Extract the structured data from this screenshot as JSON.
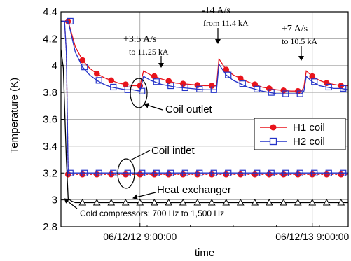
{
  "chart_data": {
    "type": "line",
    "xlabel": "time",
    "ylabel": "Temperature (K)",
    "xlim": [
      "2006-12-11 22:00",
      "2006-12-13 14:00"
    ],
    "ylim": [
      2.8,
      4.4
    ],
    "grid": true,
    "yticks": [
      2.8,
      3,
      3.2,
      3.4,
      3.6,
      3.8,
      4,
      4.2,
      4.4
    ],
    "yticks_labels": [
      "2.8",
      "3",
      "3.2",
      "3.4",
      "3.6",
      "3.8",
      "4",
      "4.2",
      "4.4"
    ],
    "xticks": [
      "2006-12-12 09:00",
      "2006-12-13 09:00"
    ],
    "xticks_labels": [
      "06/12/12  9:00:00",
      "06/12/13  9:00:00"
    ],
    "legend": {
      "position": "right",
      "entries": [
        {
          "name": "H1 coil",
          "color": "#e8141c",
          "marker": "filled-circle"
        },
        {
          "name": "H2 coil",
          "color": "#2433c8",
          "marker": "open-square"
        }
      ]
    },
    "series": [
      {
        "name": "H1 coil",
        "group": "Coil outlet",
        "color": "#e8141c",
        "x": [
          "2006-12-11 22:00",
          "2006-12-11 23:00",
          "2006-12-12 00:00",
          "2006-12-12 01:00",
          "2006-12-12 02:00",
          "2006-12-12 03:00",
          "2006-12-12 04:00",
          "2006-12-12 05:00",
          "2006-12-12 06:00",
          "2006-12-12 07:00",
          "2006-12-12 08:00",
          "2006-12-12 09:00",
          "2006-12-12 09:30",
          "2006-12-12 10:30",
          "2006-12-12 12:00",
          "2006-12-12 14:00",
          "2006-12-12 16:00",
          "2006-12-12 18:00",
          "2006-12-12 19:40",
          "2006-12-12 20:00",
          "2006-12-12 21:00",
          "2006-12-12 22:00",
          "2006-12-13 00:00",
          "2006-12-13 02:00",
          "2006-12-13 04:00",
          "2006-12-13 06:00",
          "2006-12-13 07:30",
          "2006-12-13 07:50",
          "2006-12-13 08:10",
          "2006-12-13 09:00",
          "2006-12-13 10:00",
          "2006-12-13 11:00",
          "2006-12-13 12:00",
          "2006-12-13 13:00",
          "2006-12-13 14:00"
        ],
        "y": [
          4.33,
          4.33,
          4.14,
          4.04,
          3.98,
          3.94,
          3.91,
          3.89,
          3.87,
          3.86,
          3.85,
          3.85,
          3.96,
          3.93,
          3.9,
          3.87,
          3.86,
          3.85,
          3.85,
          4.05,
          3.97,
          3.93,
          3.88,
          3.84,
          3.82,
          3.81,
          3.81,
          3.84,
          3.96,
          3.92,
          3.89,
          3.87,
          3.86,
          3.85,
          3.85
        ]
      },
      {
        "name": "H2 coil",
        "group": "Coil outlet",
        "color": "#2433c8",
        "x": [
          "2006-12-11 22:00",
          "2006-12-11 23:00",
          "2006-12-12 00:00",
          "2006-12-12 01:00",
          "2006-12-12 02:00",
          "2006-12-12 03:00",
          "2006-12-12 04:00",
          "2006-12-12 05:00",
          "2006-12-12 06:00",
          "2006-12-12 07:00",
          "2006-12-12 08:00",
          "2006-12-12 09:00",
          "2006-12-12 09:30",
          "2006-12-12 10:30",
          "2006-12-12 12:00",
          "2006-12-12 14:00",
          "2006-12-12 16:00",
          "2006-12-12 18:00",
          "2006-12-12 19:40",
          "2006-12-12 20:00",
          "2006-12-12 21:00",
          "2006-12-12 22:00",
          "2006-12-13 00:00",
          "2006-12-13 02:00",
          "2006-12-13 04:00",
          "2006-12-13 06:00",
          "2006-12-13 07:30",
          "2006-12-13 07:50",
          "2006-12-13 08:10",
          "2006-12-13 09:00",
          "2006-12-13 10:00",
          "2006-12-13 11:00",
          "2006-12-13 12:00",
          "2006-12-13 13:00",
          "2006-12-13 14:00"
        ],
        "y": [
          4.33,
          4.33,
          4.1,
          3.99,
          3.93,
          3.89,
          3.86,
          3.84,
          3.83,
          3.82,
          3.82,
          3.81,
          3.92,
          3.89,
          3.86,
          3.84,
          3.83,
          3.82,
          3.82,
          4.01,
          3.93,
          3.89,
          3.84,
          3.81,
          3.79,
          3.79,
          3.79,
          3.81,
          3.92,
          3.88,
          3.85,
          3.84,
          3.83,
          3.83,
          3.82
        ]
      },
      {
        "name": "H1 coil",
        "group": "Coil intlet",
        "color": "#e8141c",
        "x": [
          "2006-12-11 22:00",
          "2006-12-11 22:30",
          "2006-12-11 22:45",
          "2006-12-11 23:00",
          "2006-12-11 23:30",
          "2006-12-12 00:00",
          "2006-12-12 06:00",
          "2006-12-12 12:00",
          "2006-12-12 18:00",
          "2006-12-13 00:00",
          "2006-12-13 06:00",
          "2006-12-13 12:00",
          "2006-12-13 14:00"
        ],
        "y": [
          4.33,
          4.33,
          4.1,
          3.19,
          3.19,
          3.19,
          3.19,
          3.19,
          3.19,
          3.19,
          3.19,
          3.19,
          3.19
        ]
      },
      {
        "name": "H2 coil",
        "group": "Coil intlet",
        "color": "#2433c8",
        "x": [
          "2006-12-11 22:00",
          "2006-12-11 22:30",
          "2006-12-11 22:45",
          "2006-12-11 23:00",
          "2006-12-11 23:30",
          "2006-12-12 00:00",
          "2006-12-12 06:00",
          "2006-12-12 12:00",
          "2006-12-12 18:00",
          "2006-12-13 00:00",
          "2006-12-13 06:00",
          "2006-12-13 12:00",
          "2006-12-13 14:00"
        ],
        "y": [
          4.33,
          4.33,
          4.1,
          3.2,
          3.2,
          3.2,
          3.2,
          3.2,
          3.2,
          3.2,
          3.2,
          3.2,
          3.2
        ]
      },
      {
        "name": "Heat exchanger",
        "color": "#000000",
        "x": [
          "2006-12-11 22:00",
          "2006-12-11 22:20",
          "2006-12-11 22:45",
          "2006-12-11 23:00",
          "2006-12-11 23:30",
          "2006-12-12 00:00",
          "2006-12-12 06:00",
          "2006-12-12 12:00",
          "2006-12-12 18:00",
          "2006-12-13 00:00",
          "2006-12-13 06:00",
          "2006-12-13 12:00",
          "2006-12-13 14:00"
        ],
        "y": [
          4.12,
          3.98,
          3.3,
          3.01,
          2.99,
          2.98,
          2.98,
          2.98,
          2.98,
          2.98,
          2.98,
          2.98,
          2.98
        ]
      }
    ],
    "annotations": [
      {
        "id": "ramp1",
        "rate": "+3.5 A/s",
        "detail": "to 11.25 kA",
        "x": "2006-12-12 09:30"
      },
      {
        "id": "ramp2",
        "rate": "-14 A/s",
        "detail": "from 11.4 kA",
        "x": "2006-12-12 19:40"
      },
      {
        "id": "ramp3",
        "rate": "+7 A/s",
        "detail": "to 10.5 kA",
        "x": "2006-12-13 08:10"
      },
      {
        "id": "coil-outlet",
        "text": "Coil outlet"
      },
      {
        "id": "coil-inlet",
        "text": "Coil intlet"
      },
      {
        "id": "heat-exchanger",
        "text": "Heat exchanger"
      },
      {
        "id": "compressors",
        "text": "Cold compressors: 700 Hz to 1,500 Hz"
      }
    ]
  }
}
